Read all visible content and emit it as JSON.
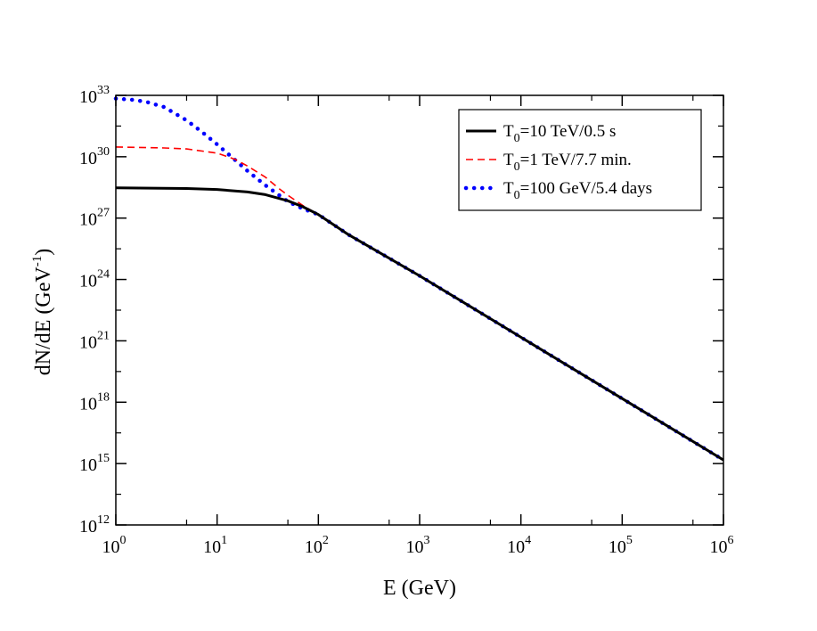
{
  "chart_data": {
    "type": "line",
    "title": "",
    "xlabel": "E (GeV)",
    "ylabel": "dN/dE (GeV",
    "ylabel_sup": "-1",
    "ylabel_close": ")",
    "xscale": "log",
    "yscale": "log",
    "xlim": [
      1,
      1000000
    ],
    "ylim": [
      1000000000000.0,
      1e+33
    ],
    "x_ticks": [
      {
        "base": "10",
        "exp": "0",
        "value": 1
      },
      {
        "base": "10",
        "exp": "1",
        "value": 10
      },
      {
        "base": "10",
        "exp": "2",
        "value": 100
      },
      {
        "base": "10",
        "exp": "3",
        "value": 1000
      },
      {
        "base": "10",
        "exp": "4",
        "value": 10000
      },
      {
        "base": "10",
        "exp": "5",
        "value": 100000
      },
      {
        "base": "10",
        "exp": "6",
        "value": 1000000
      }
    ],
    "y_ticks": [
      {
        "base": "10",
        "exp": "12",
        "value": 1000000000000.0
      },
      {
        "base": "10",
        "exp": "15",
        "value": 1000000000000000.0
      },
      {
        "base": "10",
        "exp": "18",
        "value": 1e+18
      },
      {
        "base": "10",
        "exp": "21",
        "value": 1e+21
      },
      {
        "base": "10",
        "exp": "24",
        "value": 1e+24
      },
      {
        "base": "10",
        "exp": "27",
        "value": 1e+27
      },
      {
        "base": "10",
        "exp": "30",
        "value": 1e+30
      },
      {
        "base": "10",
        "exp": "33",
        "value": 1e+33
      }
    ],
    "legend_position": "top-right",
    "series": [
      {
        "name": "T0=10 TeV/0.5 s",
        "label_prefix": "T",
        "label_sub": "0",
        "label_rest": "=10 TeV/0.5 s",
        "color": "#000000",
        "style": "solid",
        "x": [
          1,
          5,
          10,
          20,
          30,
          50,
          70,
          100,
          200,
          1000,
          10000,
          100000,
          1000000
        ],
        "y": [
          3e+28,
          2.8e+28,
          2.5e+28,
          1.9e+28,
          1.4e+28,
          7e+27,
          3.6e+27,
          1.5e+27,
          1.5e+26,
          1.5e+24,
          1.5e+21,
          1.5e+18,
          1500000000000000.0
        ]
      },
      {
        "name": "T0=1 TeV/7.7 min.",
        "label_prefix": "T",
        "label_sub": "0",
        "label_rest": "=1 TeV/7.7 min.",
        "color": "#ff0000",
        "style": "dashed",
        "x": [
          1,
          3,
          5,
          10,
          15,
          20,
          30,
          40,
          50,
          70,
          100,
          200,
          1000,
          10000,
          100000,
          1000000
        ],
        "y": [
          3e+30,
          2.7e+30,
          2.4e+30,
          1.5e+30,
          7.5e+29,
          3.5e+29,
          1e+29,
          3e+28,
          1.3e+28,
          4.2e+27,
          1.5e+27,
          1.5e+26,
          1.5e+24,
          1.5e+21,
          1.5e+18,
          1500000000000000.0
        ]
      },
      {
        "name": "T0=100 GeV/5.4 days",
        "label_prefix": "T",
        "label_sub": "0",
        "label_rest": "=100 GeV/5.4 days",
        "color": "#0000ff",
        "style": "dotted",
        "x": [
          1,
          1.5,
          2,
          3,
          5,
          7,
          10,
          15,
          20,
          30,
          50,
          70,
          100,
          200,
          1000,
          10000,
          100000,
          1000000
        ],
        "y": [
          7e+32,
          6e+32,
          4.8e+32,
          2.7e+32,
          6e+31,
          1.7e+31,
          4e+30,
          7e+29,
          2e+29,
          4e+28,
          6.5e+27,
          2.9e+27,
          1.5e+27,
          1.5e+26,
          1.5e+24,
          1.5e+21,
          1.5e+18,
          1500000000000000.0
        ]
      }
    ]
  }
}
